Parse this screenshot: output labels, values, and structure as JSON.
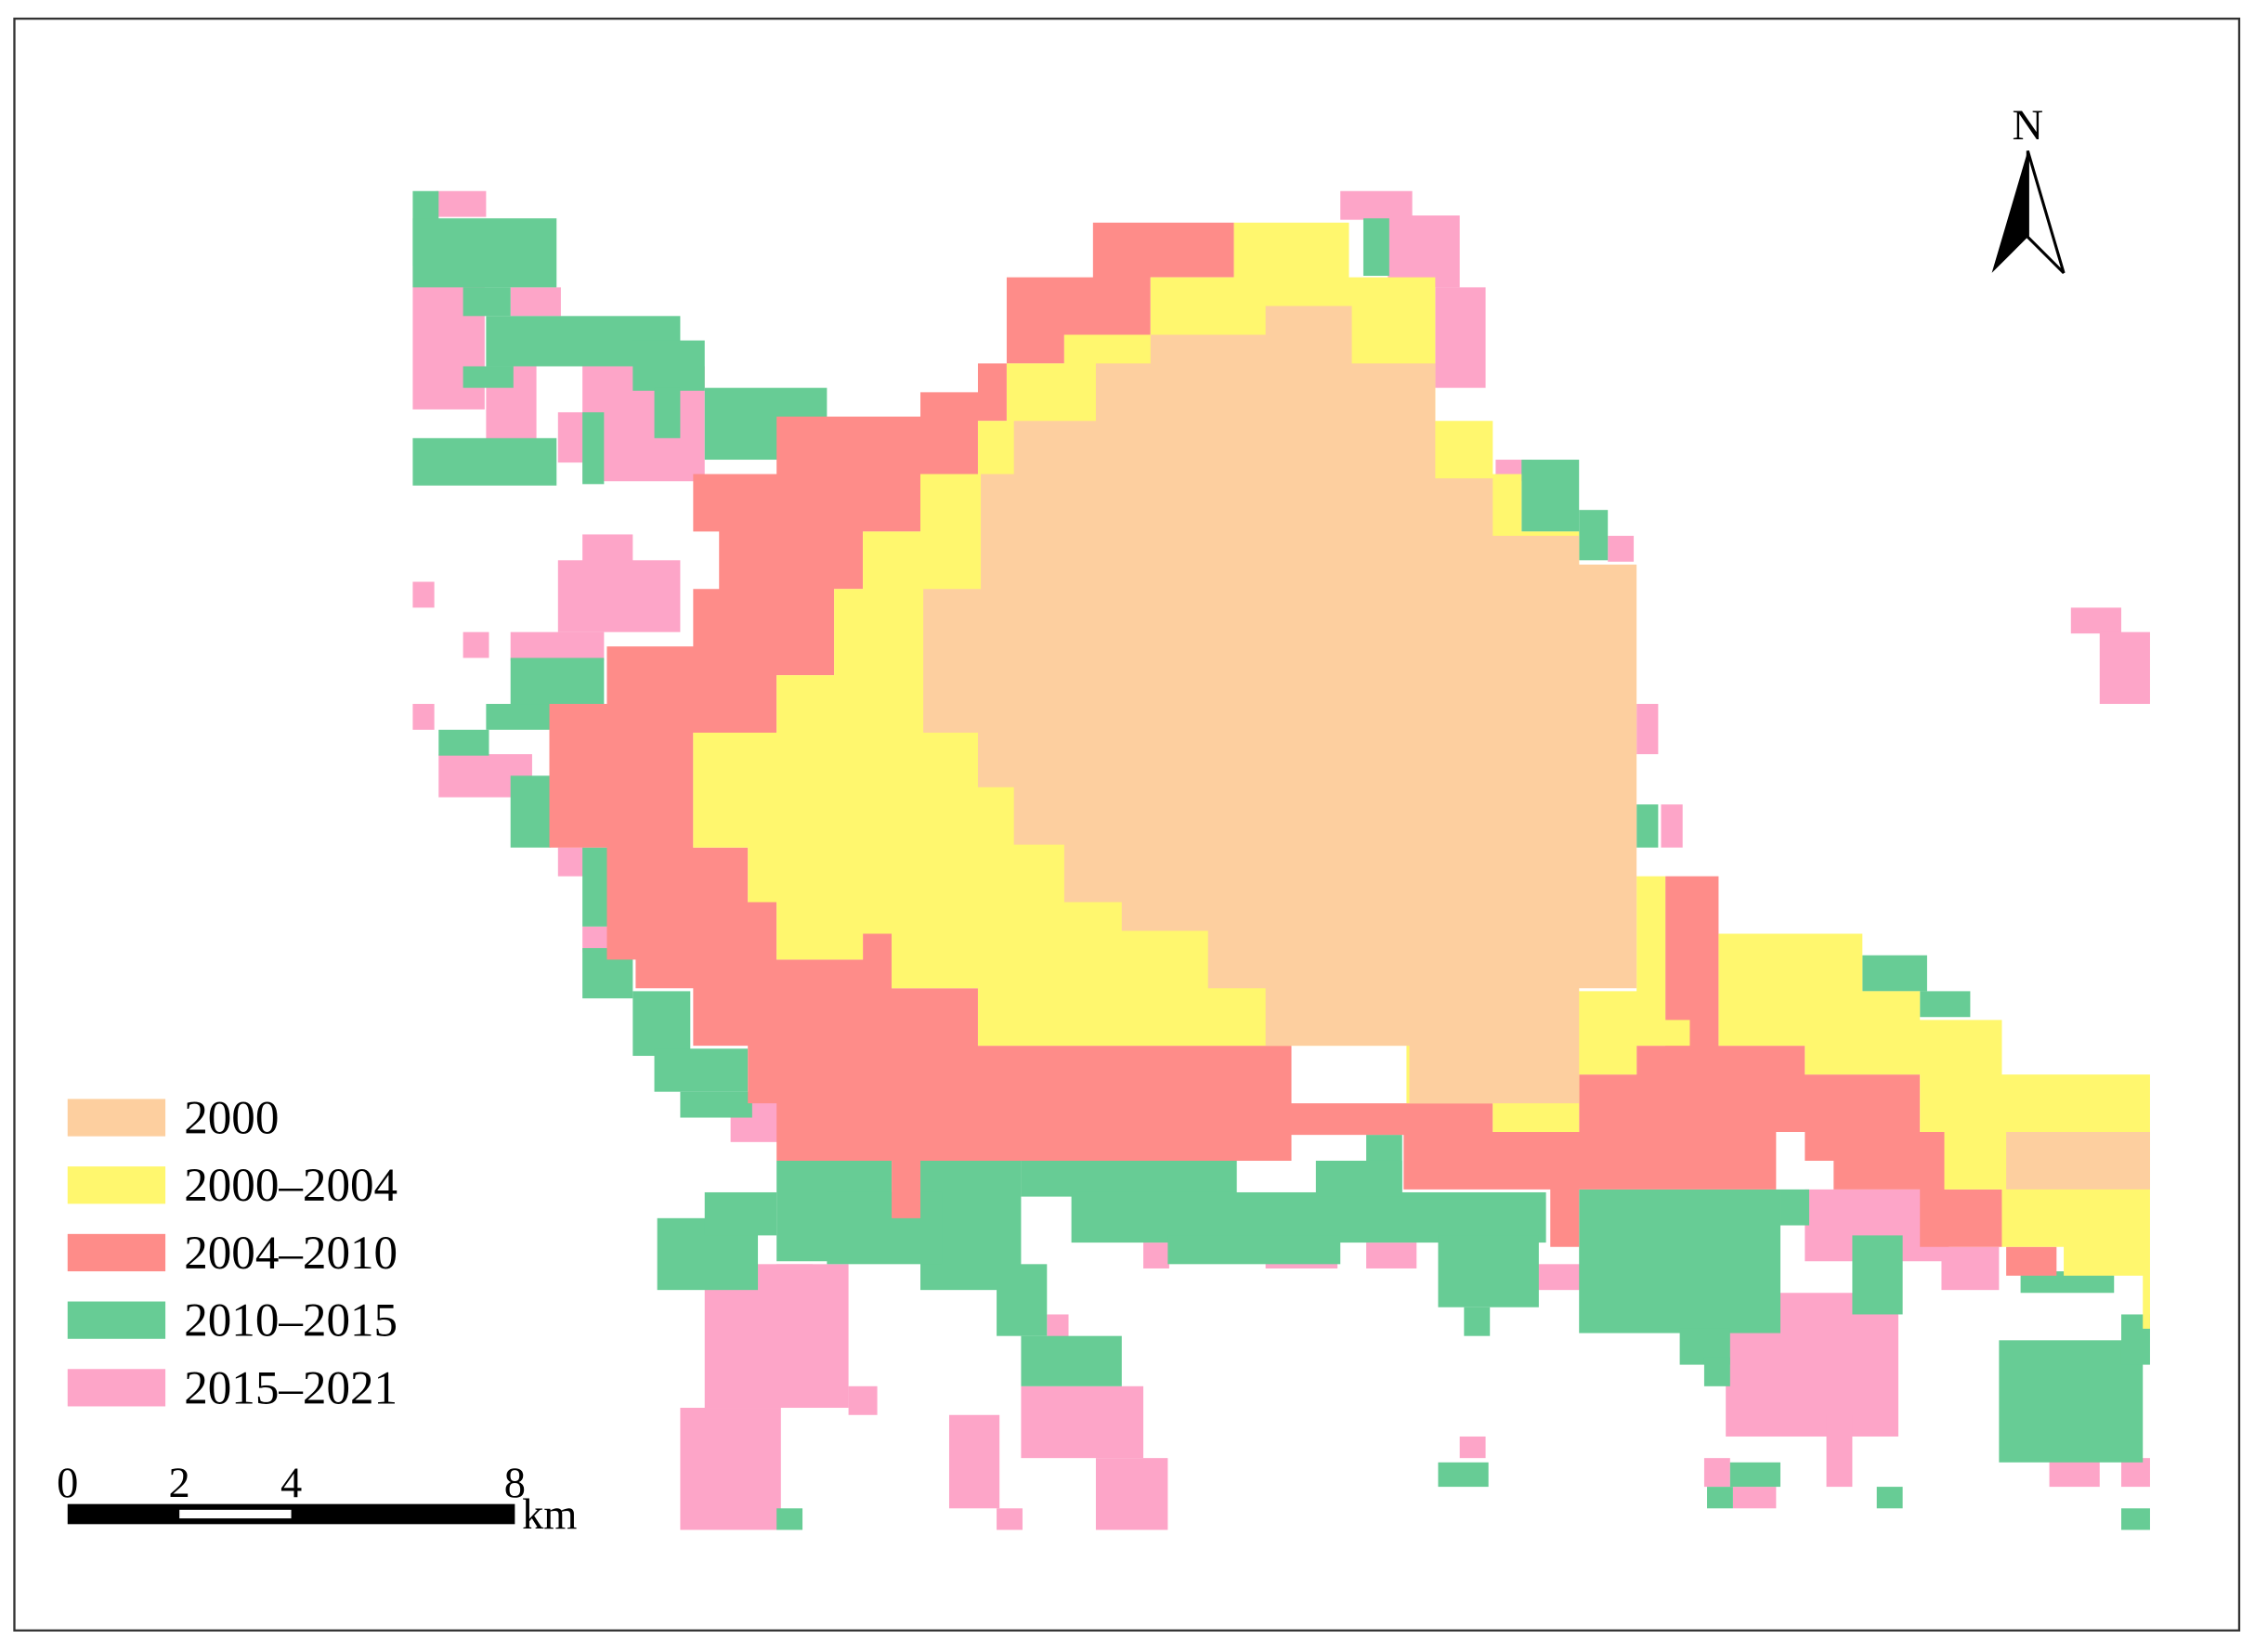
{
  "legend": {
    "items": [
      {
        "label": "2000",
        "color": "#fdcf9f"
      },
      {
        "label": "2000–2004",
        "color": "#fff76e"
      },
      {
        "label": "2004–2010",
        "color": "#fe8c89"
      },
      {
        "label": "2010–2015",
        "color": "#67cc95"
      },
      {
        "label": "2015–2021",
        "color": "#fda5c8"
      }
    ]
  },
  "scale_bar": {
    "ticks": [
      0,
      2,
      4,
      8
    ],
    "unit": "km"
  },
  "north_arrow": {
    "label": "N"
  }
}
